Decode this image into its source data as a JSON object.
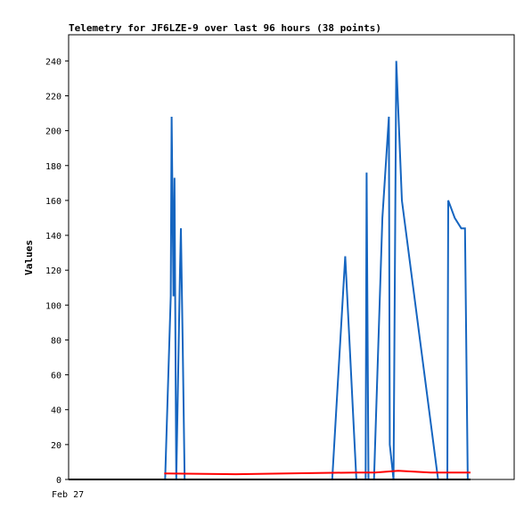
{
  "chart_data": {
    "type": "line",
    "title": "Telemetry for JF6LZE-9 over last 96 hours (38 points)",
    "ylabel": "Values",
    "xlabel": "",
    "x_tick_labels": [
      "Feb 27"
    ],
    "ylim": [
      0,
      255
    ],
    "y_ticks": [
      0,
      20,
      40,
      60,
      80,
      100,
      120,
      140,
      160,
      180,
      200,
      220,
      240
    ],
    "grid": false,
    "legend": "none",
    "x_range_hours": [
      0,
      96
    ],
    "series": [
      {
        "color": "#1565c0",
        "x": [
          0,
          20.8,
          21.2,
          22.0,
          22.2,
          22.6,
          22.8,
          23.2,
          24.0,
          24.2,
          24.6,
          25.0,
          25.6,
          56.8,
          59.6,
          62.0,
          62.2,
          63.0,
          63.2,
          64.0,
          64.2,
          64.6,
          65.8,
          67.6,
          69.0,
          69.2,
          70.0,
          70.6,
          71.8,
          79.6,
          81.2,
          81.6,
          81.8,
          83.2,
          84.6,
          85.4,
          86.0,
          86.4
        ],
        "y": [
          0,
          0,
          35,
          105,
          208,
          105,
          173,
          0,
          120,
          144,
          75,
          0,
          0,
          0,
          128,
          0,
          0,
          0,
          0,
          0,
          176,
          0,
          0,
          150,
          208,
          20,
          0,
          240,
          160,
          0,
          0,
          0,
          160,
          150,
          144,
          144,
          0,
          0
        ]
      },
      {
        "color": "#ff0000",
        "x": [
          20.6,
          36.0,
          47.0,
          62.0,
          66.0,
          71.0,
          78.0,
          84.0,
          86.6
        ],
        "y": [
          3.5,
          3,
          3.5,
          4,
          4,
          5,
          4,
          4,
          4
        ]
      },
      {
        "color": "#000000",
        "x": [
          0,
          86.6
        ],
        "y": [
          0,
          0
        ]
      }
    ]
  }
}
